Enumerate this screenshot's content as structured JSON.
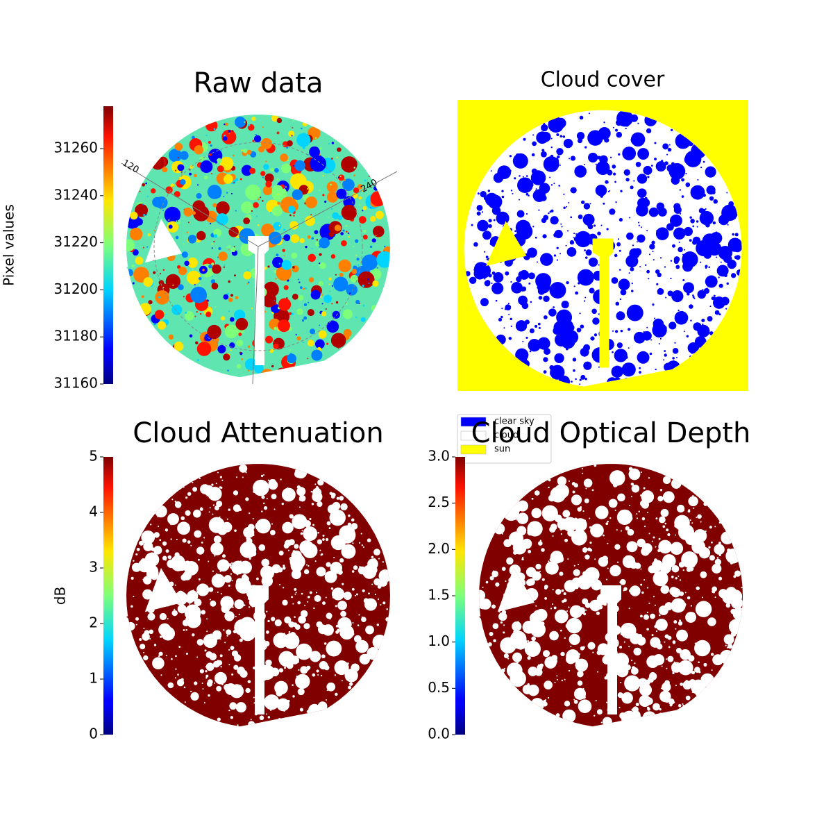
{
  "chart_data": [
    {
      "type": "image",
      "title": "Raw data",
      "colormap": "jet",
      "colorbar": {
        "label": "Pixel values",
        "ylim": [
          31160,
          31278
        ],
        "yticks": [
          31160,
          31180,
          31200,
          31220,
          31240,
          31260
        ]
      },
      "annotations": [
        "120",
        "240"
      ]
    },
    {
      "type": "classes",
      "title": "Cloud cover",
      "series": [
        {
          "name": "clear sky",
          "color": "#0000ff"
        },
        {
          "name": "cloud",
          "color": "#ffffff"
        },
        {
          "name": "sun",
          "color": "#ffff00"
        }
      ]
    },
    {
      "type": "image",
      "title": "Cloud Attenuation",
      "colormap": "jet",
      "color": "#800000",
      "colorbar": {
        "label": "dB",
        "ylim": [
          0,
          5
        ],
        "yticks": [
          0,
          1,
          2,
          3,
          4,
          5
        ]
      }
    },
    {
      "type": "image",
      "title": "Cloud Optical Depth",
      "colormap": "jet",
      "color": "#800000",
      "colorbar": {
        "ylim": [
          0,
          3
        ],
        "yticks": [
          {
            "value": 0,
            "label": "0.0"
          },
          0.5,
          {
            "value": 1,
            "label": "1.0"
          },
          1.5,
          {
            "value": 2,
            "label": "2.0"
          },
          2.5,
          {
            "value": 3,
            "label": "3.0"
          }
        ]
      }
    }
  ]
}
